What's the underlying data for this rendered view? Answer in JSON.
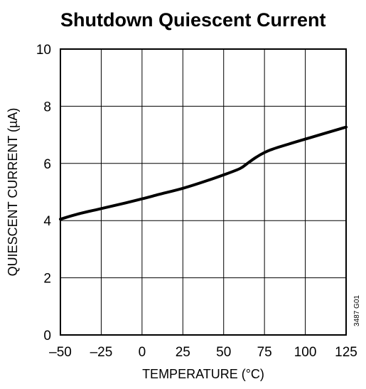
{
  "chart_data": {
    "type": "line",
    "title": "Shutdown Quiescent Current",
    "xlabel": "TEMPERATURE (°C)",
    "ylabel": "QUIESCENT CURRENT (µA)",
    "figure_code": "3487 G01",
    "xlim": [
      -50,
      125
    ],
    "ylim": [
      0,
      10
    ],
    "xticks": [
      -50,
      -25,
      0,
      25,
      50,
      75,
      100,
      125
    ],
    "xtick_labels": [
      "–50",
      "–25",
      "0",
      "25",
      "50",
      "75",
      "100",
      "125"
    ],
    "yticks": [
      0,
      2,
      4,
      6,
      8,
      10
    ],
    "ytick_labels": [
      "0",
      "2",
      "4",
      "6",
      "8",
      "10"
    ],
    "grid": true,
    "series": [
      {
        "color": "#000000",
        "x": [
          -50,
          -40,
          -25,
          -10,
          0,
          10,
          25,
          40,
          50,
          60,
          65,
          70,
          75,
          80,
          90,
          100,
          110,
          125
        ],
        "y": [
          4.05,
          4.22,
          4.42,
          4.62,
          4.76,
          4.91,
          5.13,
          5.4,
          5.6,
          5.82,
          6.02,
          6.22,
          6.38,
          6.5,
          6.68,
          6.85,
          7.02,
          7.27
        ]
      }
    ]
  }
}
